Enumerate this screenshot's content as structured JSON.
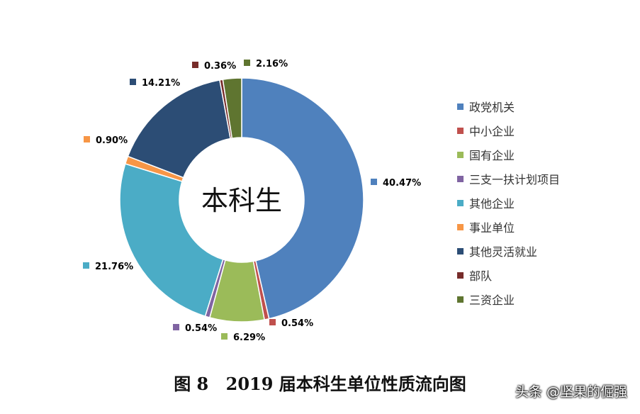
{
  "chart_data": {
    "type": "pie",
    "donut": true,
    "center_label": "本科生",
    "categories": [
      "政党机关",
      "中小企业",
      "国有企业",
      "三支一扶计划项目",
      "其他企业",
      "事业单位",
      "其他灵活就业",
      "部队",
      "三资企业"
    ],
    "values": [
      40.47,
      0.54,
      6.29,
      0.54,
      21.76,
      0.9,
      14.21,
      0.36,
      2.16
    ],
    "value_labels": [
      "40.47%",
      "0.54%",
      "6.29%",
      "0.54%",
      "21.76%",
      "0.90%",
      "14.21%",
      "0.36%",
      "2.16%"
    ],
    "colors": [
      "#4F81BD",
      "#C0504D",
      "#9BBB59",
      "#8064A2",
      "#4BACC6",
      "#F79646",
      "#2C4D75",
      "#772C2A",
      "#5F7530"
    ],
    "legend_position": "right"
  },
  "caption": {
    "figure_no": "图 8",
    "title": "2019 届本科生单位性质流向图"
  },
  "watermark": "头条 @坚果的倔强"
}
